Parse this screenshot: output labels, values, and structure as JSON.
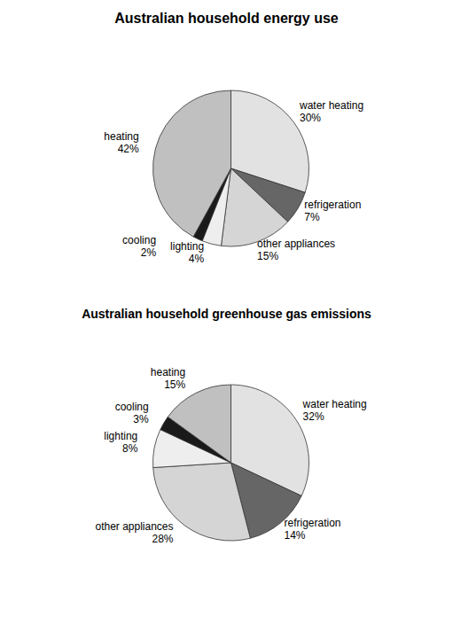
{
  "chart_data": [
    {
      "type": "pie",
      "title": "Australian household energy use",
      "categories": [
        "water heating",
        "refrigeration",
        "other appliances",
        "lighting",
        "cooling",
        "heating"
      ],
      "values": [
        30,
        7,
        15,
        4,
        2,
        42
      ],
      "value_labels": [
        "30%",
        "7%",
        "15%",
        "4%",
        "2%",
        "42%"
      ],
      "colors": [
        "#e2e2e2",
        "#666666",
        "#d5d5d5",
        "#eeeeee",
        "#1a1a1a",
        "#c0c0c0"
      ],
      "data_labels": true
    },
    {
      "type": "pie",
      "title": "Australian household greenhouse gas emissions",
      "categories": [
        "water heating",
        "refrigeration",
        "other appliances",
        "lighting",
        "cooling",
        "heating"
      ],
      "values": [
        32,
        14,
        28,
        8,
        3,
        15
      ],
      "value_labels": [
        "32%",
        "14%",
        "28%",
        "8%",
        "3%",
        "15%"
      ],
      "colors": [
        "#e2e2e2",
        "#666666",
        "#d5d5d5",
        "#eeeeee",
        "#1a1a1a",
        "#c0c0c0"
      ],
      "data_labels": true
    }
  ]
}
